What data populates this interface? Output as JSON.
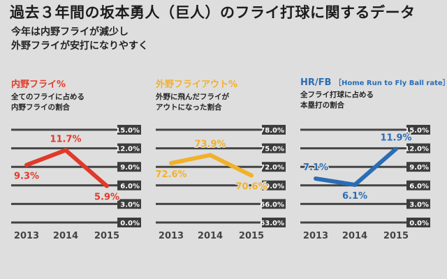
{
  "title": "過去３年間の坂本勇人（巨人）のフライ打球に関するデータ",
  "subtitle": [
    "今年は内野フライが減少し",
    "外野フライが安打になりやすく"
  ],
  "chart_data": [
    {
      "type": "line",
      "title": "内野フライ%",
      "title_sub": "",
      "description": [
        "全てのフライに占める",
        "内野フライの割合"
      ],
      "color": "#e03a2a",
      "categories": [
        "2013",
        "2014",
        "2015"
      ],
      "values": [
        9.3,
        11.7,
        5.9
      ],
      "data_labels": [
        "9.3%",
        "11.7%",
        "5.9%"
      ],
      "yticks": [
        "15.0%",
        "12.0%",
        "9.0%",
        "6.0%",
        "3.0%",
        "0.0%"
      ],
      "ylim": [
        0,
        15
      ],
      "grid": true
    },
    {
      "type": "line",
      "title": "外野フライアウト%",
      "title_sub": "",
      "description": [
        "外野に飛んだフライが",
        "アウトになった割合"
      ],
      "color": "#f2b12a",
      "categories": [
        "2013",
        "2014",
        "2015"
      ],
      "values": [
        72.6,
        73.9,
        70.6
      ],
      "data_labels": [
        "72.6%",
        "73.9%",
        "70.6%"
      ],
      "yticks": [
        "78.0%",
        "75.0%",
        "72.0%",
        "69.0%",
        "66.0%",
        "63.0%"
      ],
      "ylim": [
        63,
        78
      ],
      "grid": true
    },
    {
      "type": "line",
      "title": "HR/FB",
      "title_sub": "［Home Run to Fly Ball rate］",
      "description": [
        "全フライ打球に占める",
        "本塁打の割合"
      ],
      "color": "#2a6db5",
      "categories": [
        "2013",
        "2014",
        "2015"
      ],
      "values": [
        7.1,
        6.1,
        11.9
      ],
      "data_labels": [
        "7.1%",
        "6.1%",
        "11.9%"
      ],
      "yticks": [
        "15.0%",
        "12.0%",
        "9.0%",
        "6.0%",
        "3.0%",
        "0.0%"
      ],
      "ylim": [
        0,
        15
      ],
      "grid": true
    }
  ]
}
